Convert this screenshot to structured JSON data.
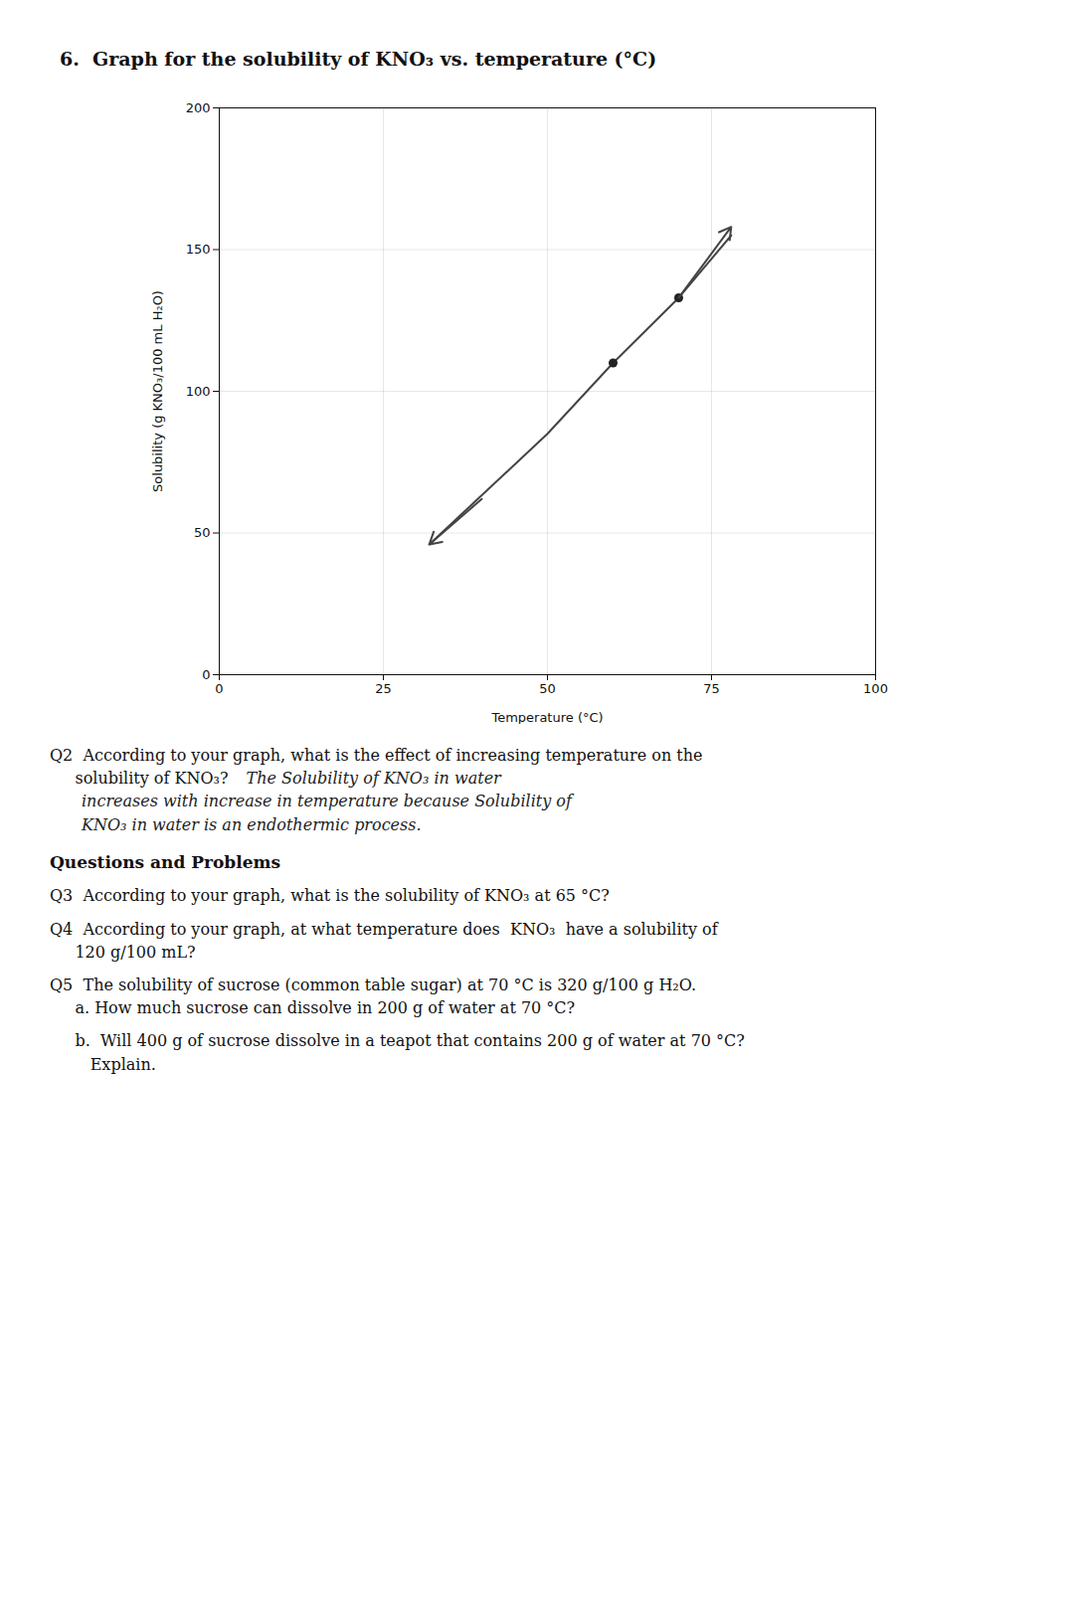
{
  "chart_data": {
    "type": "line",
    "title": "6.  Graph for the solubility of KNO₃ vs. temperature (°C)",
    "xlabel": "Temperature (°C)",
    "ylabel": "Solubility (g KNO₃/100 mL H₂O)",
    "xlim": [
      0,
      100
    ],
    "ylim": [
      0,
      200
    ],
    "xticks": [
      0,
      25,
      50,
      75,
      100
    ],
    "yticks": [
      0,
      50,
      100,
      150,
      200
    ],
    "grid": true,
    "series": [
      {
        "type": "line",
        "color": "#444444",
        "x": [
          32,
          50,
          60,
          70,
          78
        ],
        "values": [
          46,
          85,
          110,
          133,
          155
        ]
      },
      {
        "type": "scatter",
        "marker": "o",
        "color": "#222222",
        "x": [
          60,
          70
        ],
        "values": [
          110,
          133
        ]
      }
    ],
    "arrows": [
      {
        "x": 70,
        "y": 133,
        "x_end": 78,
        "y_end": 158,
        "color": "#444444"
      },
      {
        "x": 40,
        "y": 62,
        "x_end": 32,
        "y_end": 46,
        "color": "#444444"
      }
    ],
    "annotations": [
      "Q2  According to your graph, what is the effect of increasing temperature on the\n     solubility of KNO₃?",
      "The Solubility of KNO₃ in water",
      "increases with increase in temperature because Solubility of",
      "KNO₃ in water is an endothermic process.",
      "Questions and Problems",
      "Q3  According to your graph, what is the solubility of KNO₃ at 65 °C?",
      "Q4  According to your graph, at what temperature does  KNO₃  have a solubility of\n     120 g/100 mL?",
      "Q5  The solubility of sucrose (common table sugar) at 70 °C is 320 g/100 g H₂O.\n     a. How much sucrose can dissolve in 200 g of water at 70 °C?",
      "     b.  Will 400 g of sucrose dissolve in a teapot that contains 200 g of water at 70 °C?\n        Explain."
    ]
  }
}
